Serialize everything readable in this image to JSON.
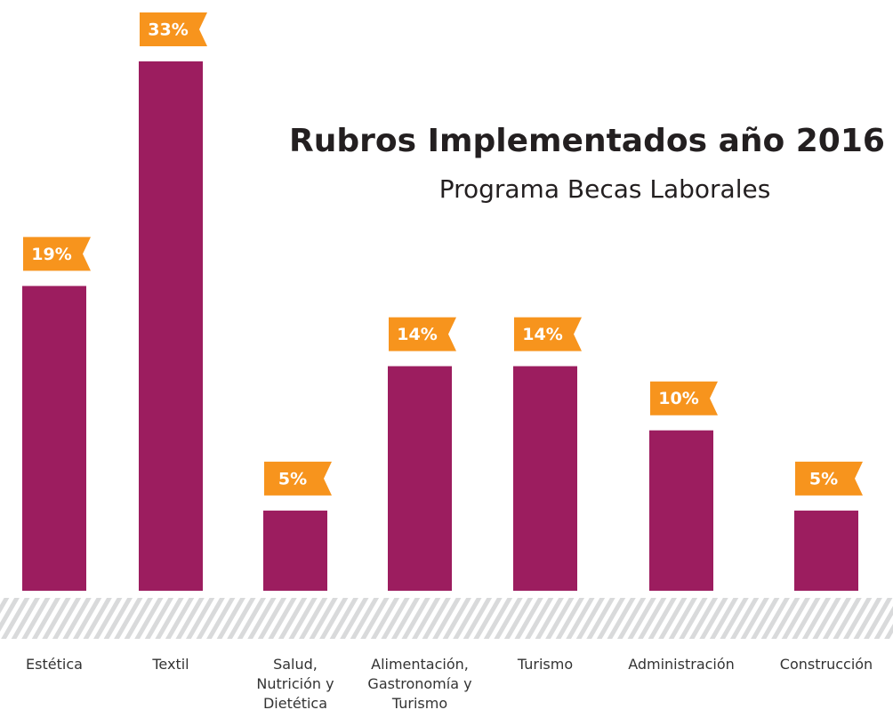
{
  "chart_data": {
    "type": "bar",
    "title": "Rubros Implementados año 2016",
    "subtitle": "Programa Becas Laborales",
    "categories": [
      "Estética",
      "Textil",
      "Salud, Nutrición y Dietética",
      "Alimentación, Gastronomía y Turismo",
      "Turismo",
      "Administración",
      "Construcción"
    ],
    "values": [
      19,
      33,
      5,
      14,
      14,
      10,
      5
    ],
    "value_labels": [
      "19%",
      "33%",
      "5%",
      "14%",
      "14%",
      "10%",
      "5%"
    ],
    "color": "#9c1d5f",
    "label_color": "#f7941d"
  }
}
